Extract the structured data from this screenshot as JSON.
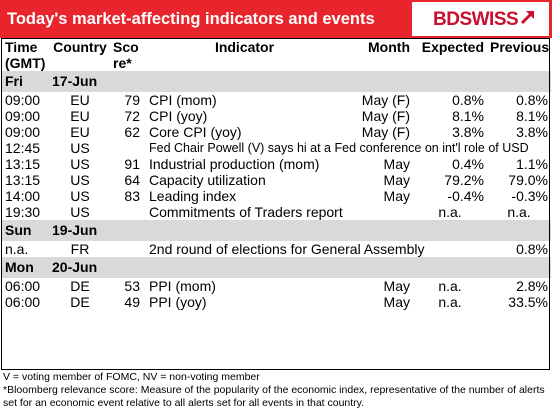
{
  "header": {
    "title": "Today's market-affecting indicators and events",
    "logo_text": "BDSWISS",
    "logo_mark": "arrow-up-right-icon"
  },
  "columns": {
    "time_1": "Time",
    "time_2": "(GMT)",
    "country": "Country",
    "score_1": "Sco",
    "score_2": "re*",
    "indicator": "Indicator",
    "month": "Month",
    "expected": "Expected",
    "previous": "Previous"
  },
  "sections": [
    {
      "day": "Fri",
      "date": "17-Jun",
      "rows": [
        {
          "time": "09:00",
          "country": "EU",
          "score": "79",
          "indicator": "CPI (mom)",
          "month": "May (F)",
          "expected": "0.8%",
          "previous": "0.8%"
        },
        {
          "time": "09:00",
          "country": "EU",
          "score": "72",
          "indicator": "CPI (yoy)",
          "month": "May (F)",
          "expected": "8.1%",
          "previous": "8.1%"
        },
        {
          "time": "09:00",
          "country": "EU",
          "score": "62",
          "indicator": "Core CPI (yoy)",
          "month": "May (F)",
          "expected": "3.8%",
          "previous": "3.8%"
        },
        {
          "time": "12:45",
          "country": "US",
          "score": "",
          "indicator": "Fed Chair Powell (V) says hi at a Fed conference on int'l role of USD",
          "month": "",
          "expected": "",
          "previous": ""
        },
        {
          "time": "13:15",
          "country": "US",
          "score": "91",
          "indicator": "Industrial production (mom)",
          "month": "May",
          "expected": "0.4%",
          "previous": "1.1%"
        },
        {
          "time": "13:15",
          "country": "US",
          "score": "64",
          "indicator": "Capacity utilization",
          "month": "May",
          "expected": "79.2%",
          "previous": "79.0%"
        },
        {
          "time": "14:00",
          "country": "US",
          "score": "83",
          "indicator": "Leading index",
          "month": "May",
          "expected": "-0.4%",
          "previous": "-0.3%"
        },
        {
          "time": "19:30",
          "country": "US",
          "score": "",
          "indicator": "Commitments of Traders  report",
          "month": "",
          "expected": "n.a.",
          "previous": "n.a."
        }
      ]
    },
    {
      "day": "Sun",
      "date": "19-Jun",
      "rows": [
        {
          "time": "n.a.",
          "country": "FR",
          "score": "",
          "indicator": "2nd round of elections for General Assembly",
          "month": "",
          "expected": "",
          "previous": "0.8%"
        }
      ]
    },
    {
      "day": "Mon",
      "date": "20-Jun",
      "rows": [
        {
          "time": "06:00",
          "country": "DE",
          "score": "53",
          "indicator": "PPI (mom)",
          "month": "May",
          "expected": "n.a.",
          "previous": "2.8%"
        },
        {
          "time": "06:00",
          "country": "DE",
          "score": "49",
          "indicator": "PPI (yoy)",
          "month": "May",
          "expected": "n.a.",
          "previous": "33.5%"
        }
      ]
    }
  ],
  "footnotes": [
    "V = voting member of FOMC, NV = non-voting member",
    "*Bloomberg relevance score:  Measure of the popularity of the economic index, representative of the number of alerts set for an economic event relative to all alerts set for all events in that country."
  ],
  "colors": {
    "header_bg": "#e8242c",
    "section_bg": "#d9d9d9",
    "logo_red": "#c8102e"
  }
}
